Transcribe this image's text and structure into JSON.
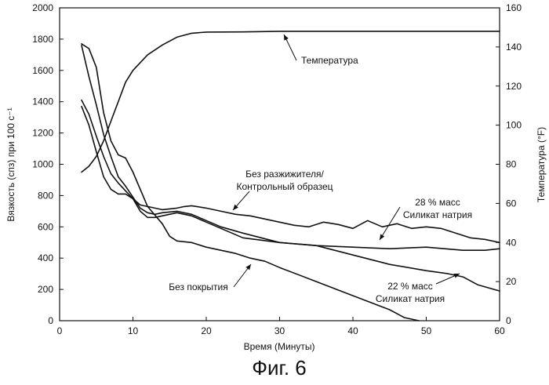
{
  "figure_caption": "Фиг. 6",
  "chart_data": {
    "type": "line",
    "xlabel": "Время (Минуты)",
    "ylabel_left": "Вязкость (спз) при 100 с⁻¹",
    "ylabel_right": "Температура (°F)",
    "xlim": [
      0,
      60
    ],
    "ylim_left": [
      0,
      2000
    ],
    "ylim_right": [
      0,
      160
    ],
    "x_ticks": [
      0,
      10,
      20,
      30,
      40,
      50,
      60
    ],
    "y_left_ticks": [
      0,
      200,
      400,
      600,
      800,
      1000,
      1200,
      1400,
      1600,
      1800,
      2000
    ],
    "y_right_ticks": [
      0,
      20,
      40,
      60,
      80,
      100,
      120,
      140,
      160
    ],
    "grid": false,
    "series": [
      {
        "key": "temperature",
        "name": "Температура",
        "axis": "right",
        "x": [
          3,
          4,
          5,
          6,
          7,
          8,
          9,
          10,
          12,
          14,
          16,
          18,
          20,
          25,
          30,
          35,
          40,
          45,
          50,
          55,
          60
        ],
        "y": [
          76,
          79,
          84,
          92,
          102,
          112,
          122,
          128,
          136,
          141,
          145,
          147,
          147.6,
          147.7,
          148,
          148,
          148,
          148,
          148,
          148,
          148
        ]
      },
      {
        "key": "no_breaker",
        "name": "Без разжижителя/ Контрольный образец",
        "axis": "left",
        "x": [
          3,
          4,
          5,
          6,
          7,
          8,
          9,
          10,
          11,
          12,
          14,
          16,
          17,
          18,
          20,
          22,
          24,
          26,
          28,
          30,
          32,
          34,
          36,
          38,
          40,
          42,
          44,
          46,
          48,
          50,
          52,
          54,
          56,
          58,
          60
        ],
        "y": [
          1370,
          1250,
          1080,
          920,
          840,
          810,
          810,
          780,
          740,
          730,
          710,
          720,
          730,
          735,
          720,
          700,
          680,
          670,
          650,
          630,
          610,
          600,
          630,
          615,
          590,
          640,
          600,
          620,
          590,
          600,
          590,
          560,
          530,
          520,
          500
        ]
      },
      {
        "key": "uncoated",
        "name": "Без покрытия",
        "axis": "left",
        "x": [
          3,
          4,
          5,
          6,
          7,
          8,
          9,
          10,
          12,
          14,
          15,
          16,
          18,
          20,
          22,
          24,
          26,
          28,
          30,
          35,
          40,
          45,
          47,
          49
        ],
        "y": [
          1770,
          1740,
          1620,
          1330,
          1150,
          1060,
          1040,
          950,
          730,
          620,
          540,
          510,
          500,
          470,
          450,
          430,
          400,
          380,
          340,
          250,
          160,
          70,
          20,
          0
        ]
      },
      {
        "key": "silicate_28",
        "name": "28 % масс Силикат натрия",
        "axis": "left",
        "x": [
          3,
          4,
          5,
          6,
          7,
          8,
          9,
          10,
          11,
          12,
          13,
          14,
          16,
          18,
          20,
          22,
          25,
          30,
          35,
          40,
          45,
          50,
          55,
          58,
          60
        ],
        "y": [
          1760,
          1560,
          1380,
          1190,
          1050,
          920,
          860,
          790,
          720,
          690,
          680,
          690,
          700,
          680,
          640,
          600,
          560,
          500,
          480,
          470,
          460,
          470,
          450,
          450,
          460
        ]
      },
      {
        "key": "silicate_22",
        "name": "22 % масс Силикат натрия",
        "axis": "left",
        "x": [
          3,
          4,
          5,
          6,
          7,
          8,
          9,
          10,
          11,
          12,
          13,
          14,
          16,
          18,
          20,
          22,
          25,
          30,
          35,
          40,
          45,
          50,
          53,
          55,
          57,
          60
        ],
        "y": [
          1410,
          1320,
          1180,
          1050,
          940,
          880,
          830,
          780,
          700,
          660,
          660,
          670,
          690,
          670,
          630,
          590,
          530,
          500,
          480,
          420,
          360,
          320,
          300,
          280,
          230,
          190
        ]
      }
    ],
    "annotations": [
      {
        "key": "temperature",
        "lines": [
          "Температура"
        ],
        "series": "temperature"
      },
      {
        "key": "no_breaker",
        "lines": [
          "Без разжижителя/",
          "Контрольный образец"
        ],
        "series": "no_breaker"
      },
      {
        "key": "silicate_28",
        "lines": [
          "28 % масс",
          "Силикат натрия"
        ],
        "series": "silicate_28"
      },
      {
        "key": "uncoated",
        "lines": [
          "Без покрытия"
        ],
        "series": "uncoated"
      },
      {
        "key": "silicate_22",
        "lines": [
          "22 % масс",
          "Силикат натрия"
        ],
        "series": "silicate_22"
      }
    ]
  }
}
